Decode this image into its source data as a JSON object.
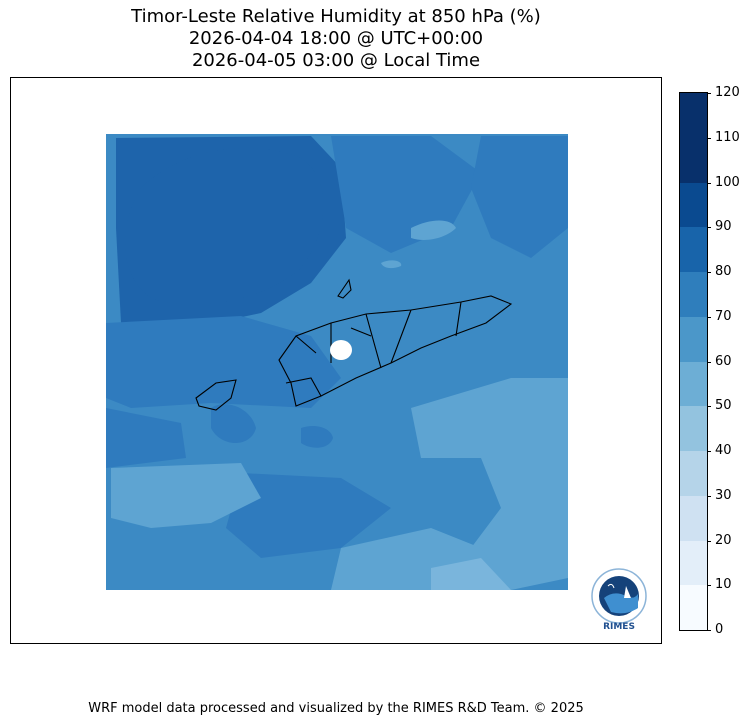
{
  "header": {
    "title_line1": "Timor-Leste Relative Humidity at 850 hPa (%)",
    "title_line2": "2026-04-04 18:00 @ UTC+00:00",
    "title_line3": "2026-04-05 03:00 @ Local Time"
  },
  "colorbar": {
    "ticks": [
      "0",
      "10",
      "20",
      "30",
      "40",
      "50",
      "60",
      "70",
      "80",
      "90",
      "100",
      "110",
      "120"
    ],
    "colors": [
      "#f7fbff",
      "#e3eef9",
      "#cfe1f2",
      "#b5d4e9",
      "#93c3df",
      "#6daed5",
      "#4b97c9",
      "#2f7ebc",
      "#1864aa",
      "#0a4a90",
      "#08306b",
      "#08306b"
    ]
  },
  "map": {
    "background": "#3c8ac4",
    "shade_dark": "#1e64ab",
    "shade_mid": "#2f7bbe",
    "shade_light": "#5ea4d2",
    "shade_lighter": "#7ab5dc"
  },
  "logo": {
    "label": "RIMES"
  },
  "footer": {
    "credit": "WRF model data processed and visualized by the RIMES R&D Team. © 2025"
  }
}
